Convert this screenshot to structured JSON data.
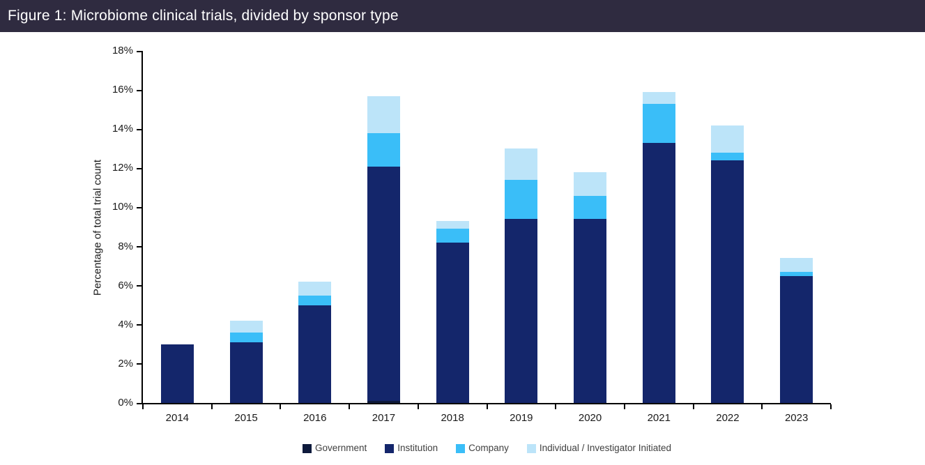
{
  "header": {
    "title": "Figure 1: Microbiome clinical trials, divided by sponsor type",
    "background": "#2F2B40",
    "text_color": "#FFFFFF"
  },
  "chart_data": {
    "type": "bar",
    "stacked": true,
    "title": "Figure 1: Microbiome clinical trials, divided by sponsor type",
    "categories": [
      "2014",
      "2015",
      "2016",
      "2017",
      "2018",
      "2019",
      "2020",
      "2021",
      "2022",
      "2023"
    ],
    "series": [
      {
        "name": "Government",
        "color": "#0E1A3C",
        "values": [
          0,
          0,
          0,
          0.1,
          0,
          0,
          0,
          0,
          0,
          0
        ]
      },
      {
        "name": "Institution",
        "color": "#14266B",
        "values": [
          3.0,
          3.1,
          5.0,
          12.0,
          8.2,
          9.4,
          9.4,
          13.3,
          12.4,
          6.5
        ]
      },
      {
        "name": "Company",
        "color": "#3ABEF8",
        "values": [
          0,
          0.5,
          0.5,
          1.7,
          0.7,
          2.0,
          1.2,
          2.0,
          0.4,
          0.2
        ]
      },
      {
        "name": "Individual / Investigator Initiated",
        "color": "#BCE4F9",
        "values": [
          0,
          0.6,
          0.7,
          1.9,
          0.4,
          1.6,
          1.2,
          0.6,
          1.4,
          0.7
        ]
      }
    ],
    "stack_totals": [
      3.0,
      4.2,
      6.2,
      15.7,
      9.3,
      13.0,
      11.8,
      15.9,
      14.2,
      7.4
    ],
    "xlabel": "",
    "ylabel": "Percentage of total trial count",
    "ylim": [
      0,
      18
    ],
    "ytick_step": 2,
    "ytick_labels": [
      "0%",
      "2%",
      "4%",
      "6%",
      "8%",
      "10%",
      "12%",
      "14%",
      "16%",
      "18%"
    ],
    "grid": false,
    "legend_position": "bottom",
    "axis_color": "#000000"
  }
}
